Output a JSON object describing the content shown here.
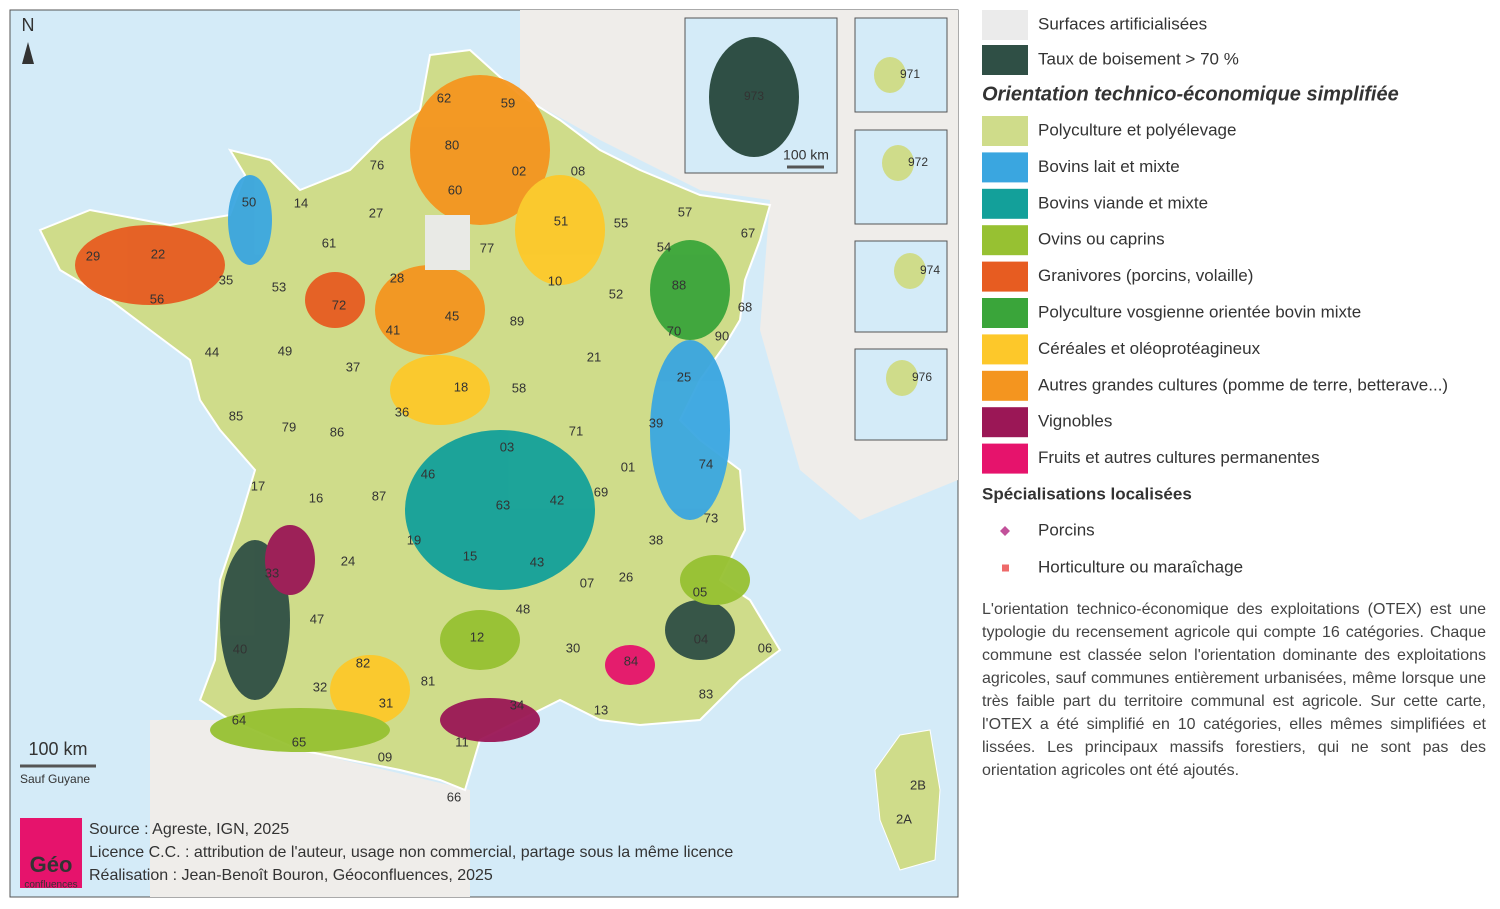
{
  "map": {
    "north": "N",
    "scale_label": "100 km",
    "scale_note": "Sauf Guyane",
    "departments": [
      "62",
      "59",
      "80",
      "02",
      "08",
      "76",
      "60",
      "50",
      "14",
      "27",
      "61",
      "77",
      "51",
      "55",
      "57",
      "54",
      "67",
      "29",
      "22",
      "35",
      "53",
      "72",
      "28",
      "10",
      "52",
      "88",
      "68",
      "56",
      "45",
      "41",
      "89",
      "70",
      "90",
      "44",
      "49",
      "37",
      "18",
      "58",
      "21",
      "25",
      "85",
      "79",
      "36",
      "86",
      "39",
      "71",
      "03",
      "01",
      "74",
      "17",
      "16",
      "87",
      "46",
      "63",
      "42",
      "69",
      "73",
      "19",
      "15",
      "43",
      "38",
      "33",
      "24",
      "07",
      "26",
      "05",
      "47",
      "48",
      "04",
      "06",
      "40",
      "12",
      "30",
      "84",
      "82",
      "32",
      "81",
      "83",
      "34",
      "13",
      "31",
      "64",
      "65",
      "11",
      "09",
      "66",
      "2B",
      "2A"
    ],
    "insets": [
      {
        "label": "973",
        "scale_label": "100 km"
      },
      {
        "label": "971"
      },
      {
        "label": "972"
      },
      {
        "label": "974"
      },
      {
        "label": "976"
      }
    ]
  },
  "legend": {
    "base": [
      {
        "label": "Surfaces artificialisées",
        "color": "#ebebeb"
      },
      {
        "label": "Taux de boisement > 70 %",
        "color": "#2f4f45"
      }
    ],
    "title": "Orientation technico-économique simplifiée",
    "categories": [
      {
        "label": "Polyculture et polyélevage",
        "color": "#cfdc8a"
      },
      {
        "label": "Bovins lait et mixte",
        "color": "#3aa6e0"
      },
      {
        "label": "Bovins viande et mixte",
        "color": "#13a09a"
      },
      {
        "label": "Ovins ou caprins",
        "color": "#97c132"
      },
      {
        "label": "Granivores (porcins, volaille)",
        "color": "#e75c21"
      },
      {
        "label": "Polyculture vosgienne orientée bovin mixte",
        "color": "#3aa53a"
      },
      {
        "label": "Céréales et oléoprotéagineux",
        "color": "#fdc82a"
      },
      {
        "label": "Autres grandes cultures (pomme de terre, betterave...)",
        "color": "#f4951f"
      },
      {
        "label": "Vignobles",
        "color": "#9b1756"
      },
      {
        "label": "Fruits et autres cultures permanentes",
        "color": "#e6136c"
      }
    ],
    "local_title": "Spécialisations localisées",
    "local": [
      {
        "label": "Porcins",
        "color": "#c2519a"
      },
      {
        "label": "Horticulture ou maraîchage",
        "color": "#ee6a6a"
      }
    ]
  },
  "description": "L'orientation technico-économique des exploitations (OTEX) est une typologie du recensement agricole qui compte 16 catégories. Chaque commune est classée selon l'orientation dominante des exploitations agricoles, sauf communes entièrement urbanisées, même lorsque une très faible part du territoire communal est agricole. Sur cette carte, l'OTEX a été simplifié en 10 catégories, elles mêmes simplifiées et lissées. Les principaux massifs forestiers, qui ne sont pas des orientation agricoles ont été ajoutés.",
  "credits": {
    "source": "Source : Agreste, IGN, 2025",
    "licence": "Licence C.C. : attribution de l'auteur, usage non commercial, partage sous la même licence",
    "realisation": "Réalisation : Jean-Benoît Bouron, Géoconfluences, 2025",
    "logo_top": "Géo",
    "logo_bottom": "confluences"
  }
}
